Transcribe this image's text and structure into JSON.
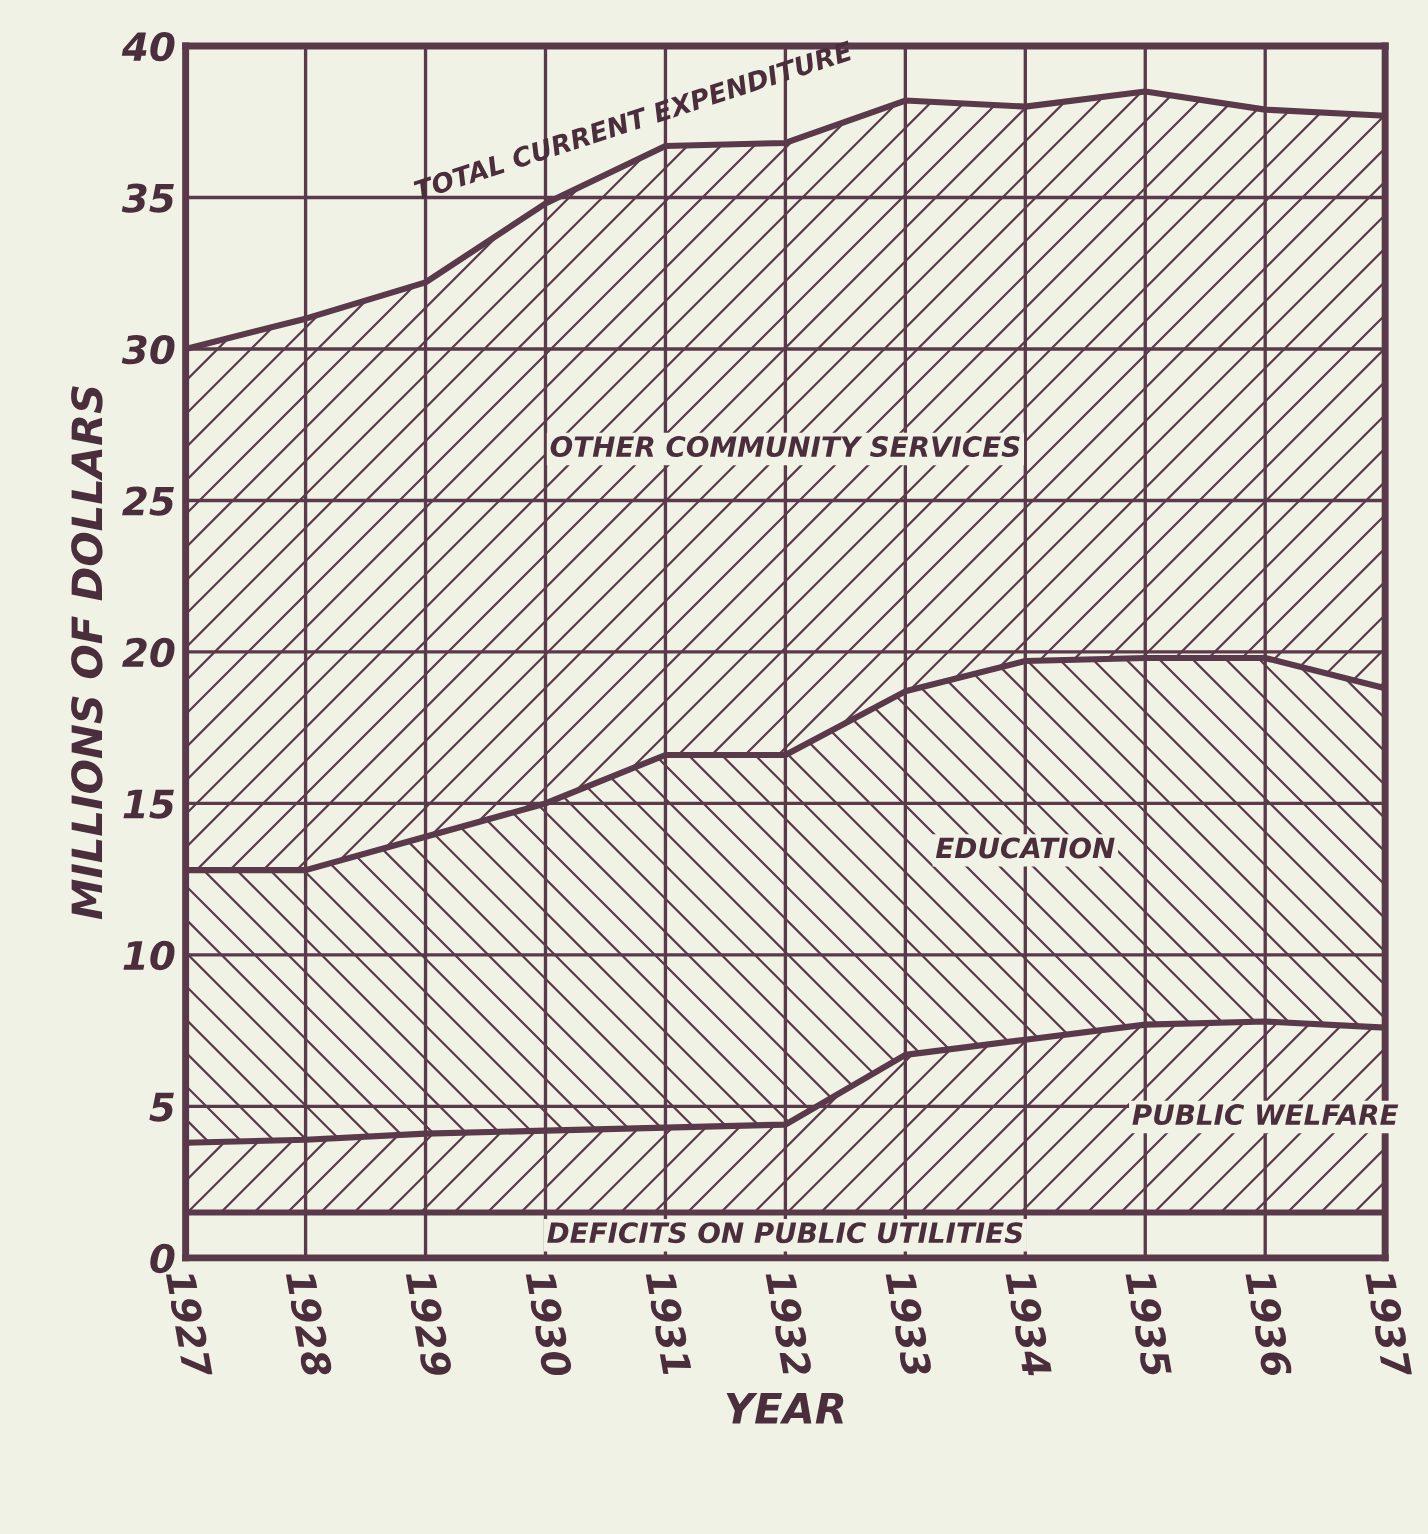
{
  "chart_data": {
    "type": "area",
    "stacked": true,
    "xlabel": "YEAR",
    "ylabel": "MILLIONS OF DOLLARS",
    "x": [
      1927,
      1928,
      1929,
      1930,
      1931,
      1932,
      1933,
      1934,
      1935,
      1936,
      1937
    ],
    "xlim": [
      1927,
      1937
    ],
    "xticks": [
      1927,
      1928,
      1929,
      1930,
      1931,
      1932,
      1933,
      1934,
      1935,
      1936,
      1937
    ],
    "ylim": [
      0,
      40
    ],
    "yticks": [
      0,
      5,
      10,
      15,
      20,
      25,
      30,
      35,
      40
    ],
    "grid": true,
    "series": [
      {
        "name": "DEFICITS ON PUBLIC UTILITIES",
        "color": "#5a3a4a",
        "values": [
          1.5,
          1.5,
          1.5,
          1.5,
          1.5,
          1.5,
          1.5,
          1.5,
          1.5,
          1.5,
          1.5
        ]
      },
      {
        "name": "PUBLIC WELFARE",
        "color": "#5a3a4a",
        "values": [
          2.3,
          2.4,
          2.6,
          2.7,
          2.8,
          2.9,
          5.2,
          5.7,
          6.2,
          6.3,
          6.1
        ]
      },
      {
        "name": "EDUCATION",
        "color": "#5a3a4a",
        "values": [
          9.0,
          8.9,
          9.8,
          10.8,
          12.3,
          12.2,
          12.0,
          12.5,
          12.1,
          12.0,
          11.2
        ]
      },
      {
        "name": "OTHER COMMUNITY SERVICES",
        "color": "#5a3a4a",
        "values": [
          17.2,
          18.2,
          18.3,
          19.8,
          20.1,
          20.2,
          19.5,
          18.3,
          18.7,
          18.1,
          18.9
        ]
      }
    ],
    "annotations": [
      {
        "text": "TOTAL CURRENT EXPENDITURE",
        "x": 1931,
        "y": 36.7
      }
    ]
  }
}
